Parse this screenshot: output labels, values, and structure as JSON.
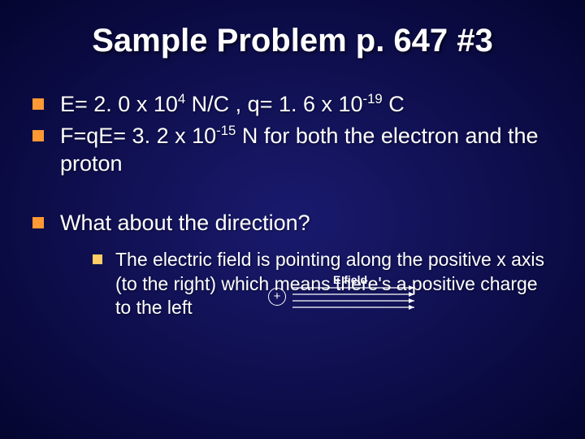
{
  "colors": {
    "background_center": "#1a1a6e",
    "background_edge": "#050530",
    "text": "#ffffff",
    "bullet_l1": "#ff9933",
    "bullet_l2": "#ffcc66",
    "arrow": "#ffffff"
  },
  "typography": {
    "title_fontsize": 40,
    "l1_fontsize": 27,
    "l2_fontsize": 23,
    "font_family": "Arial"
  },
  "title": "Sample Problem p. 647 #3",
  "bullets": {
    "b1_pre": "E= 2. 0 x 10",
    "b1_sup1": "4",
    "b1_mid": " N/C , q= 1. 6 x 10",
    "b1_sup2": "-19",
    "b1_post": " C",
    "b2_pre": "F=qE= 3. 2 x 10",
    "b2_sup": "-15",
    "b2_post": " N for both the electron and the proton",
    "b3": "What about the direction?",
    "b3a": "The electric field is pointing along the positive x axis (to the right) which means there's a positive charge to the left"
  },
  "diagram": {
    "plus_symbol": "+",
    "label": "E field",
    "arrow_count": 4,
    "arrow_length": 150,
    "arrow_spacing": 8,
    "arrow_color": "#ffffff"
  }
}
